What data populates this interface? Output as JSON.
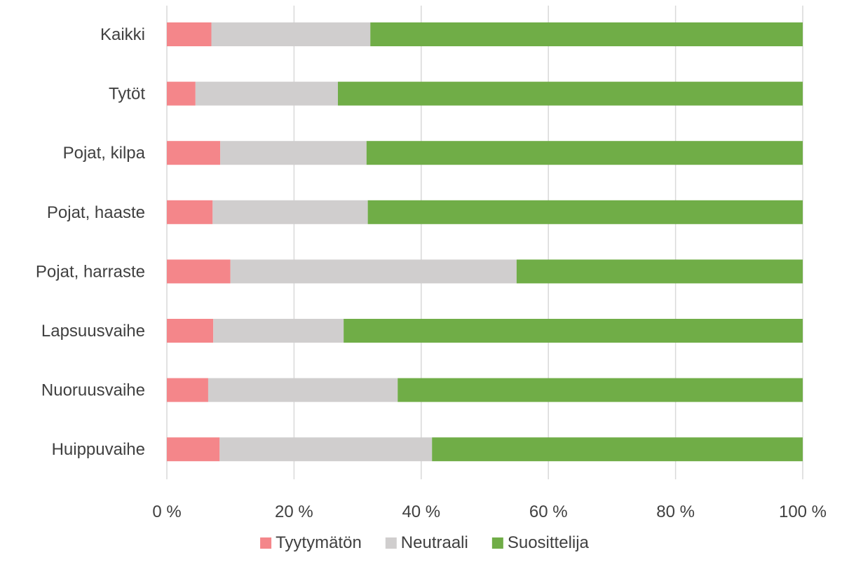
{
  "chart_data": {
    "type": "bar",
    "orientation": "horizontal",
    "stacked": "percent",
    "categories": [
      "Kaikki",
      "Tytöt",
      "Pojat, kilpa",
      "Pojat, haaste",
      "Pojat, harraste",
      "Lapsuusvaihe",
      "Nuoruusvaihe",
      "Huippuvaihe"
    ],
    "series": [
      {
        "name": "Tyytymätön",
        "color": "#f4868a",
        "values": [
          7.0,
          4.5,
          8.4,
          7.2,
          10.0,
          7.3,
          6.5,
          8.3
        ]
      },
      {
        "name": "Neutraali",
        "color": "#d0cece",
        "values": [
          25.0,
          22.4,
          23.0,
          24.4,
          45.0,
          20.5,
          29.8,
          33.4
        ]
      },
      {
        "name": "Suosittelija",
        "color": "#70ad47",
        "values": [
          68.0,
          73.1,
          68.6,
          68.4,
          45.0,
          72.2,
          63.7,
          58.3
        ]
      }
    ],
    "x_ticks": [
      "0 %",
      "20 %",
      "40 %",
      "60 %",
      "80 %",
      "100 %"
    ],
    "xlim": [
      0,
      100
    ],
    "grid": true,
    "legend_position": "bottom",
    "title": "",
    "xlabel": "",
    "ylabel": ""
  }
}
